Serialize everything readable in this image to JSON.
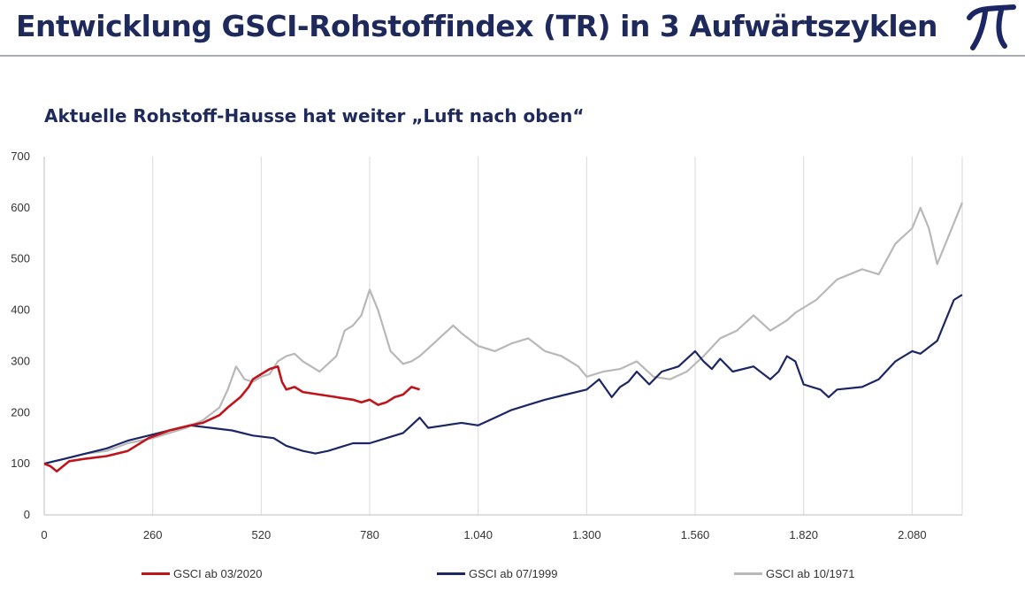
{
  "header": {
    "title": "Entwicklung GSCI-Rohstoffindex (TR) in 3 Aufwärtszyklen",
    "logo": "pi-icon"
  },
  "chart_data": {
    "type": "line",
    "title": "Aktuelle Rohstoff-Hausse hat weiter „Luft nach oben“",
    "xlabel": "",
    "ylabel": "",
    "xlim": [
      0,
      2200
    ],
    "ylim": [
      0,
      700
    ],
    "x_ticks": [
      0,
      260,
      520,
      780,
      1040,
      1300,
      1560,
      1820,
      2080
    ],
    "x_tick_labels": [
      "0",
      "260",
      "520",
      "780",
      "1.040",
      "1.300",
      "1.560",
      "1.820",
      "2.080"
    ],
    "y_ticks": [
      0,
      100,
      200,
      300,
      400,
      500,
      600,
      700
    ],
    "y_tick_labels": [
      "0",
      "100",
      "200",
      "300",
      "400",
      "500",
      "600",
      "700"
    ],
    "grid": "vertical",
    "legend_position": "bottom",
    "series": [
      {
        "name": "GSCI ab 03/2020",
        "color": "#c0141b",
        "x": [
          0,
          15,
          30,
          60,
          100,
          150,
          200,
          250,
          300,
          350,
          380,
          420,
          440,
          470,
          490,
          500,
          520,
          540,
          560,
          570,
          580,
          600,
          620,
          660,
          700,
          740,
          760,
          780,
          800,
          820,
          840,
          860,
          880,
          900
        ],
        "values": [
          100,
          95,
          85,
          105,
          110,
          115,
          125,
          150,
          165,
          175,
          180,
          195,
          210,
          230,
          250,
          265,
          275,
          285,
          290,
          260,
          245,
          250,
          240,
          235,
          230,
          225,
          220,
          225,
          215,
          220,
          230,
          235,
          250,
          245
        ]
      },
      {
        "name": "GSCI ab 07/1999",
        "color": "#1c2664",
        "x": [
          0,
          50,
          100,
          150,
          200,
          250,
          300,
          350,
          400,
          450,
          500,
          550,
          580,
          620,
          650,
          680,
          700,
          740,
          780,
          820,
          860,
          880,
          900,
          920,
          960,
          1000,
          1040,
          1080,
          1120,
          1160,
          1200,
          1250,
          1300,
          1330,
          1360,
          1380,
          1400,
          1420,
          1450,
          1480,
          1520,
          1560,
          1580,
          1600,
          1620,
          1650,
          1700,
          1740,
          1760,
          1780,
          1800,
          1820,
          1840,
          1860,
          1880,
          1900,
          1960,
          2000,
          2040,
          2080,
          2100,
          2140,
          2180,
          2200
        ],
        "values": [
          100,
          110,
          120,
          130,
          145,
          155,
          165,
          175,
          170,
          165,
          155,
          150,
          135,
          125,
          120,
          125,
          130,
          140,
          140,
          150,
          160,
          175,
          190,
          170,
          175,
          180,
          175,
          190,
          205,
          215,
          225,
          235,
          245,
          265,
          230,
          250,
          260,
          280,
          255,
          280,
          290,
          320,
          300,
          285,
          305,
          280,
          290,
          265,
          280,
          310,
          300,
          255,
          250,
          245,
          230,
          245,
          250,
          265,
          300,
          320,
          315,
          340,
          420,
          430
        ]
      },
      {
        "name": "GSCI ab 10/1971",
        "color": "#b8b8b8",
        "x": [
          0,
          50,
          100,
          150,
          200,
          260,
          300,
          340,
          380,
          420,
          440,
          460,
          480,
          500,
          520,
          540,
          560,
          580,
          600,
          620,
          660,
          700,
          720,
          740,
          760,
          780,
          800,
          830,
          860,
          880,
          900,
          940,
          980,
          1000,
          1040,
          1080,
          1120,
          1160,
          1200,
          1240,
          1280,
          1300,
          1340,
          1380,
          1420,
          1460,
          1500,
          1540,
          1580,
          1620,
          1660,
          1700,
          1740,
          1780,
          1800,
          1850,
          1900,
          1960,
          2000,
          2040,
          2080,
          2100,
          2120,
          2140,
          2180,
          2200
        ],
        "values": [
          100,
          110,
          120,
          125,
          140,
          150,
          160,
          170,
          185,
          210,
          245,
          290,
          265,
          260,
          270,
          275,
          300,
          310,
          315,
          300,
          280,
          310,
          360,
          370,
          390,
          440,
          400,
          320,
          295,
          300,
          310,
          340,
          370,
          355,
          330,
          320,
          335,
          345,
          320,
          310,
          290,
          270,
          280,
          285,
          300,
          270,
          265,
          280,
          310,
          345,
          360,
          390,
          360,
          380,
          395,
          420,
          460,
          480,
          470,
          530,
          560,
          600,
          560,
          490,
          570,
          610
        ]
      }
    ]
  }
}
